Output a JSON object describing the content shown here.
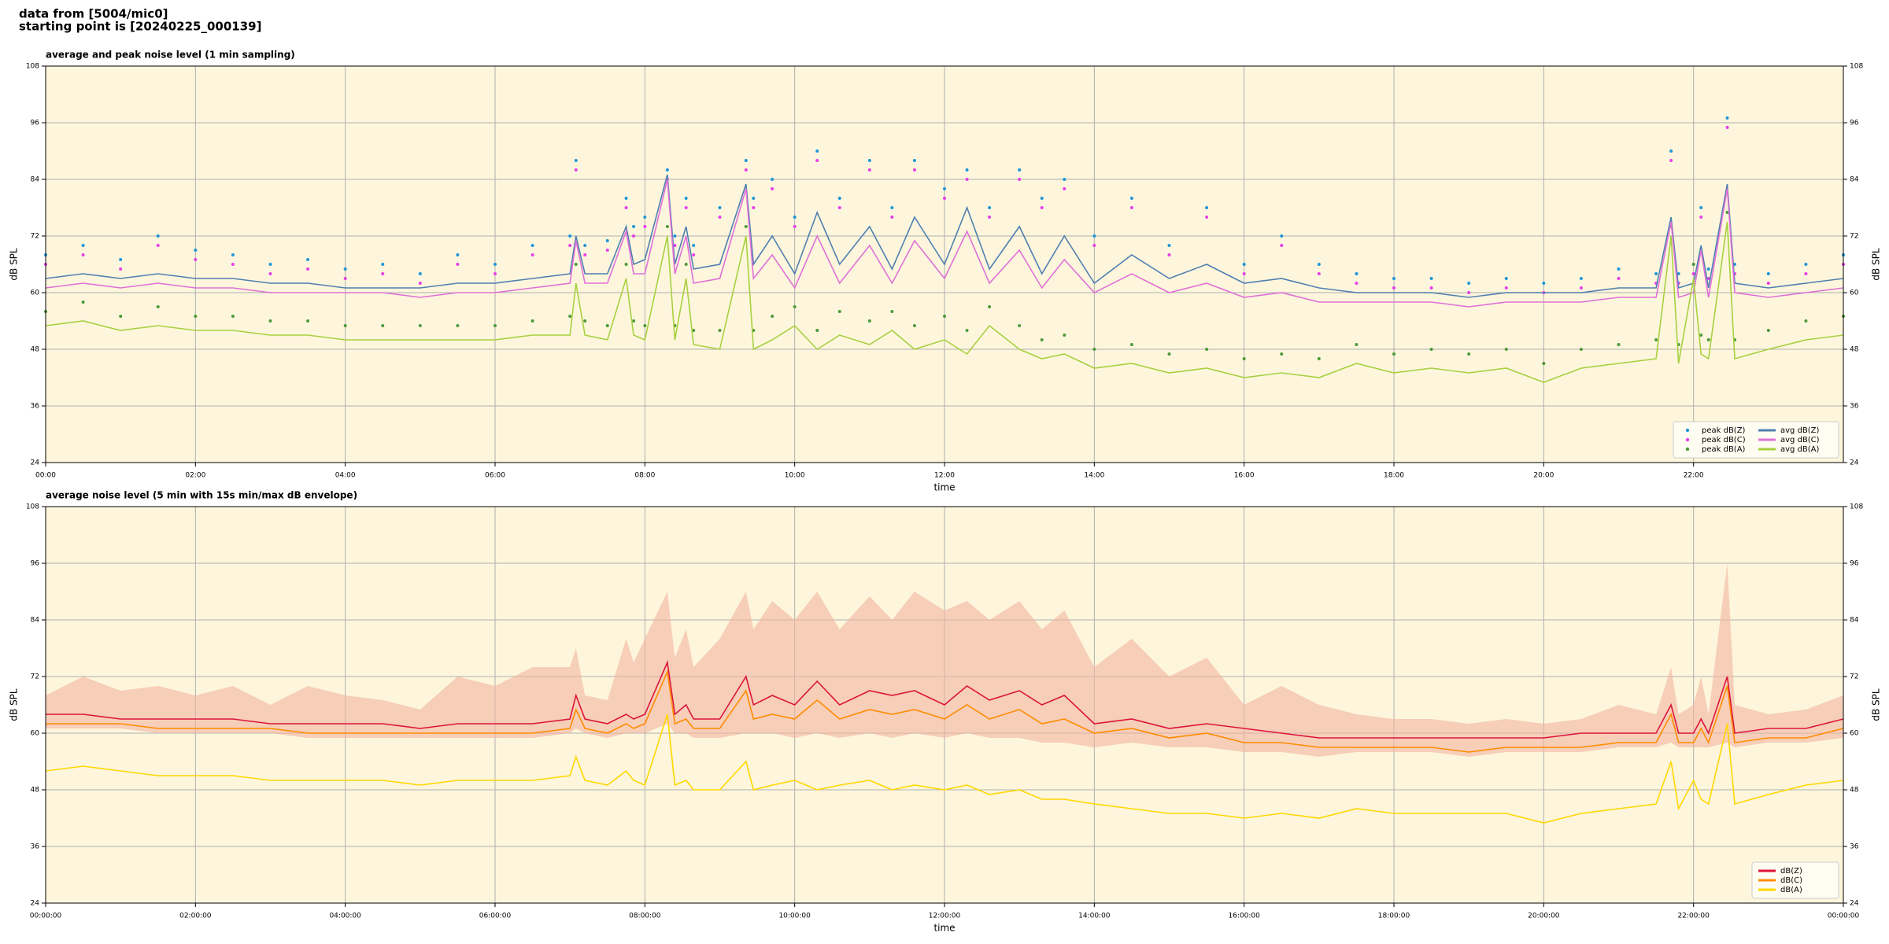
{
  "header": {
    "line1": "data from [5004/mic0]",
    "line2": "starting point is [20240225_000139]"
  },
  "chart_data": [
    {
      "type": "line",
      "title": "average and peak noise level (1 min sampling)",
      "xlabel": "time",
      "ylabel": "dB SPL",
      "xlim": [
        0,
        24
      ],
      "ylim": [
        24,
        108
      ],
      "grid": true,
      "legend": "lower right",
      "background": "#fdf6dc",
      "xticks": [
        {
          "value": 0,
          "label": "00:00"
        },
        {
          "value": 2,
          "label": "02:00"
        },
        {
          "value": 4,
          "label": "04:00"
        },
        {
          "value": 6,
          "label": "06:00"
        },
        {
          "value": 8,
          "label": "08:00"
        },
        {
          "value": 10,
          "label": "10:00"
        },
        {
          "value": 12,
          "label": "12:00"
        },
        {
          "value": 14,
          "label": "14:00"
        },
        {
          "value": 16,
          "label": "16:00"
        },
        {
          "value": 18,
          "label": "18:00"
        },
        {
          "value": 20,
          "label": "20:00"
        },
        {
          "value": 22,
          "label": "22:00"
        }
      ],
      "yticks": [
        24,
        36,
        48,
        60,
        72,
        84,
        96,
        108
      ],
      "x": [
        0,
        0.5,
        1,
        1.5,
        2,
        2.5,
        3,
        3.5,
        4,
        4.5,
        5,
        5.5,
        6,
        6.5,
        7,
        7.08,
        7.2,
        7.5,
        7.75,
        7.85,
        8,
        8.3,
        8.4,
        8.55,
        8.65,
        9,
        9.35,
        9.45,
        9.7,
        10,
        10.3,
        10.6,
        11,
        11.3,
        11.6,
        12,
        12.3,
        12.6,
        13,
        13.3,
        13.6,
        14,
        14.5,
        15,
        15.5,
        16,
        16.5,
        17,
        17.5,
        18,
        18.5,
        19,
        19.5,
        20,
        20.5,
        21,
        21.5,
        21.7,
        21.8,
        22,
        22.1,
        22.2,
        22.45,
        22.55,
        23,
        23.5,
        24
      ],
      "series": [
        {
          "name": "peak dB(Z)",
          "color": "#2196d8",
          "marker": "dot",
          "values": [
            68,
            70,
            67,
            72,
            69,
            68,
            66,
            67,
            65,
            66,
            64,
            68,
            66,
            70,
            72,
            88,
            70,
            71,
            80,
            74,
            76,
            86,
            72,
            80,
            70,
            78,
            88,
            80,
            84,
            76,
            90,
            80,
            88,
            78,
            88,
            82,
            86,
            78,
            86,
            80,
            84,
            72,
            80,
            70,
            78,
            66,
            72,
            66,
            64,
            63,
            63,
            62,
            63,
            62,
            63,
            65,
            64,
            90,
            64,
            66,
            78,
            65,
            97,
            66,
            64,
            66,
            68
          ]
        },
        {
          "name": "peak dB(C)",
          "color": "#e83ee8",
          "marker": "dot",
          "values": [
            66,
            68,
            65,
            70,
            67,
            66,
            64,
            65,
            63,
            64,
            62,
            66,
            64,
            68,
            70,
            86,
            68,
            69,
            78,
            72,
            74,
            84,
            70,
            78,
            68,
            76,
            86,
            78,
            82,
            74,
            88,
            78,
            86,
            76,
            86,
            80,
            84,
            76,
            84,
            78,
            82,
            70,
            78,
            68,
            76,
            64,
            70,
            64,
            62,
            61,
            61,
            60,
            61,
            60,
            61,
            63,
            62,
            88,
            62,
            64,
            76,
            63,
            95,
            64,
            62,
            64,
            66
          ]
        },
        {
          "name": "peak dB(A)",
          "color": "#4f9a3a",
          "marker": "dot",
          "values": [
            56,
            58,
            55,
            57,
            55,
            55,
            54,
            54,
            53,
            53,
            53,
            53,
            53,
            54,
            55,
            66,
            54,
            53,
            66,
            54,
            53,
            74,
            53,
            66,
            52,
            52,
            74,
            52,
            55,
            57,
            52,
            56,
            54,
            56,
            53,
            55,
            52,
            57,
            53,
            50,
            51,
            48,
            49,
            47,
            48,
            46,
            47,
            46,
            49,
            47,
            48,
            47,
            48,
            45,
            48,
            49,
            50,
            74,
            49,
            66,
            51,
            50,
            77,
            50,
            52,
            54,
            55
          ]
        },
        {
          "name": "avg dB(Z)",
          "color": "#4f7fb0",
          "values": [
            63,
            64,
            63,
            64,
            63,
            63,
            62,
            62,
            61,
            61,
            61,
            62,
            62,
            63,
            64,
            72,
            64,
            64,
            74,
            66,
            67,
            85,
            66,
            74,
            65,
            66,
            83,
            66,
            72,
            64,
            77,
            66,
            74,
            65,
            76,
            66,
            78,
            65,
            74,
            64,
            72,
            62,
            68,
            63,
            66,
            62,
            63,
            61,
            60,
            60,
            60,
            59,
            60,
            60,
            60,
            61,
            61,
            76,
            61,
            62,
            70,
            61,
            83,
            62,
            61,
            62,
            63
          ]
        },
        {
          "name": "avg dB(C)",
          "color": "#e070d8",
          "values": [
            61,
            62,
            61,
            62,
            61,
            61,
            60,
            60,
            60,
            60,
            59,
            60,
            60,
            61,
            62,
            71,
            62,
            62,
            73,
            64,
            64,
            84,
            64,
            72,
            62,
            63,
            82,
            63,
            68,
            61,
            72,
            62,
            70,
            62,
            71,
            63,
            73,
            62,
            69,
            61,
            67,
            60,
            64,
            60,
            62,
            59,
            60,
            58,
            58,
            58,
            58,
            57,
            58,
            58,
            58,
            59,
            59,
            75,
            59,
            60,
            69,
            59,
            82,
            60,
            59,
            60,
            61
          ]
        },
        {
          "name": "avg dB(A)",
          "color": "#a8d040",
          "values": [
            53,
            54,
            52,
            53,
            52,
            52,
            51,
            51,
            50,
            50,
            50,
            50,
            50,
            51,
            51,
            62,
            51,
            50,
            63,
            51,
            50,
            72,
            50,
            63,
            49,
            48,
            72,
            48,
            50,
            53,
            48,
            51,
            49,
            52,
            48,
            50,
            47,
            53,
            48,
            46,
            47,
            44,
            45,
            43,
            44,
            42,
            43,
            42,
            45,
            43,
            44,
            43,
            44,
            41,
            44,
            45,
            46,
            72,
            45,
            63,
            47,
            46,
            75,
            46,
            48,
            50,
            51
          ]
        }
      ]
    },
    {
      "type": "line",
      "title": "average noise level (5 min with 15s min/max dB envelope)",
      "xlabel": "time",
      "ylabel": "dB SPL",
      "xlim": [
        0,
        24
      ],
      "ylim": [
        24,
        108
      ],
      "grid": true,
      "legend": "lower right",
      "background": "#fdf6dc",
      "xticks": [
        {
          "value": 0,
          "label": "00:00:00"
        },
        {
          "value": 2,
          "label": "02:00:00"
        },
        {
          "value": 4,
          "label": "04:00:00"
        },
        {
          "value": 6,
          "label": "06:00:00"
        },
        {
          "value": 8,
          "label": "08:00:00"
        },
        {
          "value": 10,
          "label": "10:00:00"
        },
        {
          "value": 12,
          "label": "12:00:00"
        },
        {
          "value": 14,
          "label": "14:00:00"
        },
        {
          "value": 16,
          "label": "16:00:00"
        },
        {
          "value": 18,
          "label": "18:00:00"
        },
        {
          "value": 20,
          "label": "20:00:00"
        },
        {
          "value": 22,
          "label": "22:00:00"
        },
        {
          "value": 24,
          "label": "00:00:00"
        }
      ],
      "yticks": [
        24,
        36,
        48,
        60,
        72,
        84,
        96,
        108
      ],
      "x": [
        0,
        0.5,
        1,
        1.5,
        2,
        2.5,
        3,
        3.5,
        4,
        4.5,
        5,
        5.5,
        6,
        6.5,
        7,
        7.08,
        7.2,
        7.5,
        7.75,
        7.85,
        8,
        8.3,
        8.4,
        8.55,
        8.65,
        9,
        9.35,
        9.45,
        9.7,
        10,
        10.3,
        10.6,
        11,
        11.3,
        11.6,
        12,
        12.3,
        12.6,
        13,
        13.3,
        13.6,
        14,
        14.5,
        15,
        15.5,
        16,
        16.5,
        17,
        17.5,
        18,
        18.5,
        19,
        19.5,
        20,
        20.5,
        21,
        21.5,
        21.7,
        21.8,
        22,
        22.1,
        22.2,
        22.45,
        22.55,
        23,
        23.5,
        24
      ],
      "band": {
        "color": "#f4b4a0",
        "upper": [
          68,
          72,
          69,
          70,
          68,
          70,
          66,
          70,
          68,
          67,
          65,
          72,
          70,
          74,
          74,
          78,
          68,
          67,
          80,
          75,
          80,
          90,
          76,
          82,
          74,
          80,
          90,
          82,
          88,
          84,
          90,
          82,
          89,
          84,
          90,
          86,
          88,
          84,
          88,
          82,
          86,
          74,
          80,
          72,
          76,
          66,
          70,
          66,
          64,
          63,
          63,
          62,
          63,
          62,
          63,
          66,
          64,
          74,
          64,
          66,
          72,
          64,
          96,
          66,
          64,
          65,
          68
        ],
        "lower": [
          61,
          61,
          61,
          60,
          60,
          60,
          60,
          59,
          59,
          59,
          59,
          59,
          59,
          59,
          60,
          61,
          60,
          59,
          60,
          60,
          60,
          62,
          60,
          60,
          59,
          59,
          60,
          60,
          60,
          59,
          60,
          59,
          60,
          59,
          60,
          59,
          60,
          59,
          59,
          58,
          58,
          57,
          58,
          57,
          57,
          56,
          56,
          55,
          56,
          56,
          56,
          55,
          56,
          56,
          56,
          57,
          57,
          58,
          57,
          57,
          57,
          57,
          58,
          57,
          58,
          58,
          59
        ]
      },
      "series": [
        {
          "name": "dB(Z)",
          "color": "#dc143c",
          "values": [
            64,
            64,
            63,
            63,
            63,
            63,
            62,
            62,
            62,
            62,
            61,
            62,
            62,
            62,
            63,
            68,
            63,
            62,
            64,
            63,
            64,
            75,
            64,
            66,
            63,
            63,
            72,
            66,
            68,
            66,
            71,
            66,
            69,
            68,
            69,
            66,
            70,
            67,
            69,
            66,
            68,
            62,
            63,
            61,
            62,
            61,
            60,
            59,
            59,
            59,
            59,
            59,
            59,
            59,
            60,
            60,
            60,
            66,
            60,
            60,
            63,
            60,
            72,
            60,
            61,
            61,
            63
          ]
        },
        {
          "name": "dB(C)",
          "color": "#ff8c00",
          "values": [
            62,
            62,
            62,
            61,
            61,
            61,
            61,
            60,
            60,
            60,
            60,
            60,
            60,
            60,
            61,
            65,
            61,
            60,
            62,
            61,
            62,
            73,
            62,
            63,
            61,
            61,
            69,
            63,
            64,
            63,
            67,
            63,
            65,
            64,
            65,
            63,
            66,
            63,
            65,
            62,
            63,
            60,
            61,
            59,
            60,
            58,
            58,
            57,
            57,
            57,
            57,
            56,
            57,
            57,
            57,
            58,
            58,
            64,
            58,
            58,
            61,
            58,
            70,
            58,
            59,
            59,
            61
          ]
        },
        {
          "name": "dB(A)",
          "color": "#ffd700",
          "values": [
            52,
            53,
            52,
            51,
            51,
            51,
            50,
            50,
            50,
            50,
            49,
            50,
            50,
            50,
            51,
            55,
            50,
            49,
            52,
            50,
            49,
            64,
            49,
            50,
            48,
            48,
            54,
            48,
            49,
            50,
            48,
            49,
            50,
            48,
            49,
            48,
            49,
            47,
            48,
            46,
            46,
            45,
            44,
            43,
            43,
            42,
            43,
            42,
            44,
            43,
            43,
            43,
            43,
            41,
            43,
            44,
            45,
            54,
            44,
            50,
            46,
            45,
            62,
            45,
            47,
            49,
            50
          ]
        }
      ]
    }
  ]
}
